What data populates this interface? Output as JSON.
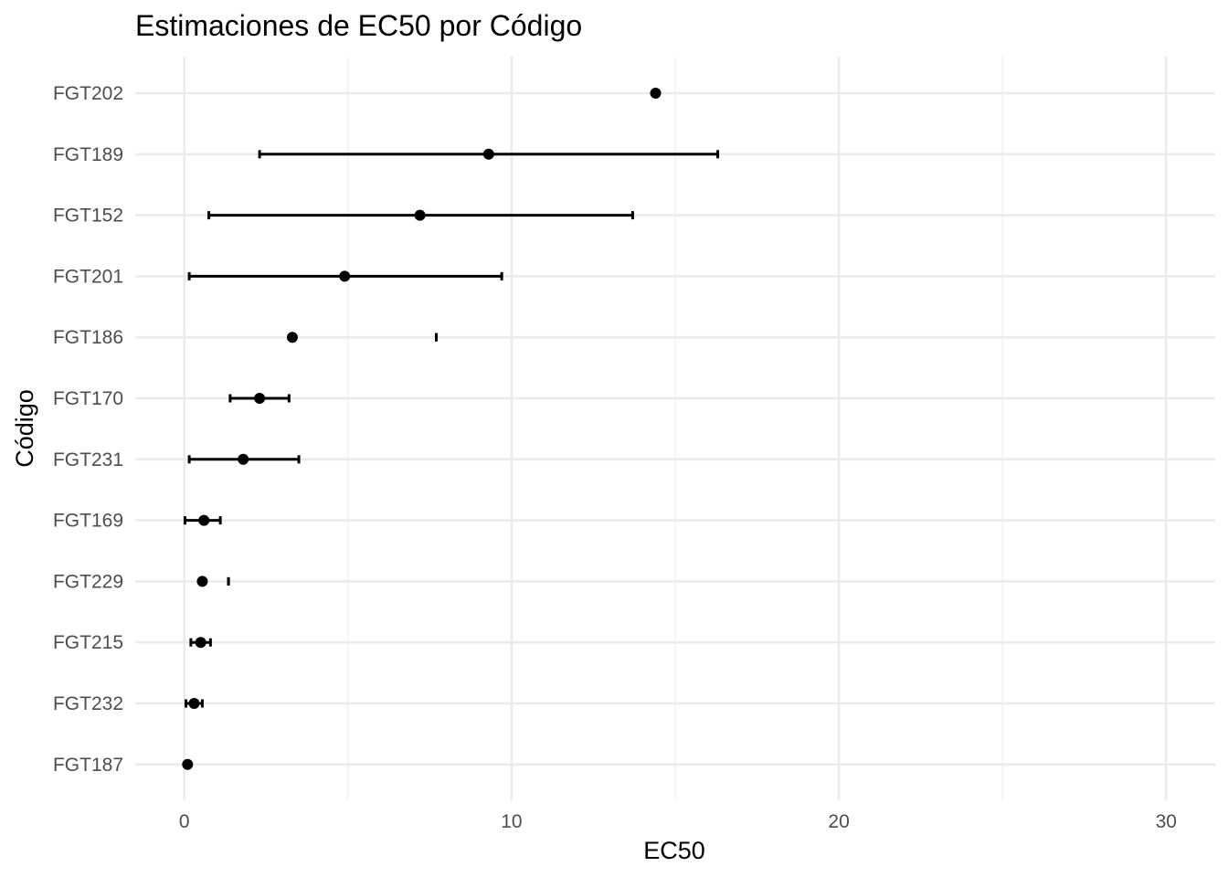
{
  "chart_data": {
    "type": "scatter",
    "title": "Estimaciones de EC50 por Código",
    "xlabel": "EC50",
    "ylabel": "Código",
    "xlim": [
      -1.5,
      31.5
    ],
    "x_ticks": [
      0,
      10,
      20,
      30
    ],
    "x_minor_ticks": [
      5,
      15,
      25
    ],
    "grid": true,
    "legend": "none",
    "categories": [
      "FGT202",
      "FGT189",
      "FGT152",
      "FGT201",
      "FGT186",
      "FGT170",
      "FGT231",
      "FGT169",
      "FGT229",
      "FGT215",
      "FGT232",
      "FGT187"
    ],
    "series": [
      {
        "points": [
          {
            "code": "FGT202",
            "ec50": 14.4,
            "lower": null,
            "upper": null
          },
          {
            "code": "FGT189",
            "ec50": 9.3,
            "lower": 2.3,
            "upper": 16.3
          },
          {
            "code": "FGT152",
            "ec50": 7.2,
            "lower": 0.75,
            "upper": 13.7
          },
          {
            "code": "FGT201",
            "ec50": 4.9,
            "lower": 0.15,
            "upper": 9.7
          },
          {
            "code": "FGT186",
            "ec50": 3.3,
            "lower": 7.7,
            "upper": 7.7
          },
          {
            "code": "FGT170",
            "ec50": 2.3,
            "lower": 1.4,
            "upper": 3.2
          },
          {
            "code": "FGT231",
            "ec50": 1.8,
            "lower": 0.15,
            "upper": 3.5
          },
          {
            "code": "FGT169",
            "ec50": 0.6,
            "lower": 0.02,
            "upper": 1.1
          },
          {
            "code": "FGT229",
            "ec50": 0.55,
            "lower": 1.35,
            "upper": 1.35
          },
          {
            "code": "FGT215",
            "ec50": 0.5,
            "lower": 0.2,
            "upper": 0.8
          },
          {
            "code": "FGT232",
            "ec50": 0.3,
            "lower": 0.05,
            "upper": 0.55
          },
          {
            "code": "FGT187",
            "ec50": 0.1,
            "lower": null,
            "upper": null
          }
        ]
      }
    ],
    "colors": {
      "points": "#000000",
      "grid": "#ebebeb",
      "tick_text": "#4d4d4d"
    }
  }
}
